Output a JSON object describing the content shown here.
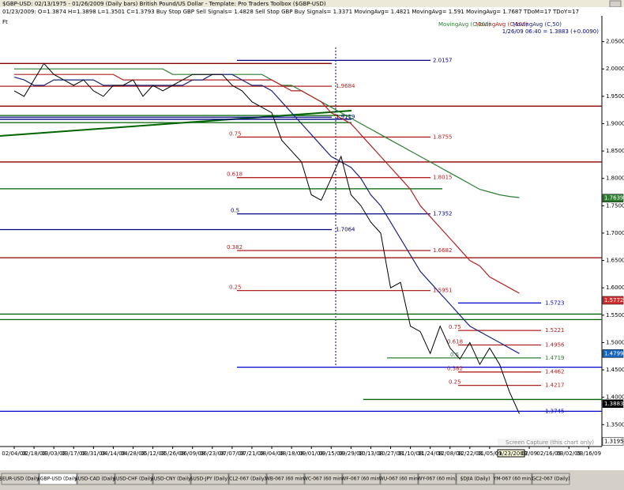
{
  "window": {
    "title": "$GBP-USD:  02/13/1975 - 01/26/2009  (Daily bars)   British Pound/US Dollar  -  Template: Pro Traders Toolbox ($GBP-USD)",
    "info": "01/23/2009:  O=1.3874  H=1.3898  L=1.3501  C=1.3793  Buy Stop GBP Sell Signals= 1.4828  Sell Stop GBP Buy Signals= 1.3371  MovingAvg= 1.4821  MovingAvg= 1.591  MovingAvg= 1.7687  TDoM=17  TDoY=17",
    "panel_label": "Ft",
    "capture_note": "Screen Capture (this chart only)",
    "cursor_date": "01/23/2009",
    "quote": "1/26/09 06:40 = 1.3883 (+0.0090)",
    "tabs": [
      "$EUR-USD (Daily)",
      "$GBP-USD (Daily)",
      "$USD-CAD (Daily)",
      "$USD-CHF (Daily)",
      "$USD-CNY (Daily)",
      "$USD-JPY (Daily)",
      "CL2-067 (Daily)",
      "WB-067 (60 min)",
      "WC-067 (60 min)",
      "WF-067 (60 min)",
      "WU-067 (60 min)",
      "WY-067 (60 min)",
      "$DJIA (Daily)",
      "YM-067 (60 min)",
      "GC2-067 (Daily)"
    ]
  },
  "chart_data": {
    "type": "line",
    "categories": [
      "02/04/08",
      null,
      "02/18/08",
      null,
      "03/03/08",
      null,
      "03/17/08",
      null,
      "03/31/08",
      null,
      "04/14/08",
      null,
      "04/28/08",
      null,
      "05/12/08",
      null,
      "05/26/08",
      null,
      "06/09/08",
      null,
      "06/23/08",
      null,
      "07/07/08",
      null,
      "07/21/08",
      null,
      "08/04/08",
      null,
      "08/18/08",
      null,
      "09/01/08",
      null,
      "09/15/08",
      null,
      "09/29/08",
      null,
      "10/13/08",
      null,
      "10/27/08",
      null,
      "11/10/08",
      null,
      "11/24/08",
      null,
      "12/08/08",
      null,
      "12/22/08",
      null,
      "01/05/09",
      null,
      null,
      null,
      "02/09",
      null,
      "02/16/09",
      null,
      "03/02/09",
      null,
      "03/16/09"
    ],
    "price": {
      "color": "#000000",
      "values": [
        1.96,
        1.95,
        1.98,
        2.01,
        1.99,
        1.98,
        1.97,
        1.98,
        1.96,
        1.95,
        1.97,
        1.97,
        1.98,
        1.95,
        1.97,
        1.96,
        1.97,
        1.98,
        1.99,
        1.99,
        1.99,
        1.99,
        1.97,
        1.96,
        1.94,
        1.93,
        1.92,
        1.87,
        1.85,
        1.83,
        1.77,
        1.76,
        1.8,
        1.84,
        1.77,
        1.75,
        1.72,
        1.7,
        1.6,
        1.61,
        1.53,
        1.52,
        1.48,
        1.53,
        1.49,
        1.47,
        1.5,
        1.46,
        1.49,
        1.46,
        1.41,
        1.37,
        null,
        null,
        null,
        null,
        null,
        null,
        null
      ]
    },
    "series": [
      {
        "name": "MovingAvg (C,200)",
        "color": "#2e7d32",
        "values": [
          2.0,
          2.0,
          2.0,
          2.0,
          2.0,
          2.0,
          2.0,
          2.0,
          2.0,
          2.0,
          2.0,
          2.0,
          2.0,
          2.0,
          2.0,
          2.0,
          1.99,
          1.99,
          1.99,
          1.99,
          1.99,
          1.99,
          1.99,
          1.99,
          1.99,
          1.99,
          1.98,
          1.97,
          1.97,
          1.96,
          1.95,
          1.94,
          1.93,
          1.92,
          1.91,
          1.9,
          1.89,
          1.88,
          1.87,
          1.86,
          1.85,
          1.84,
          1.83,
          1.82,
          1.81,
          1.8,
          1.79,
          1.78,
          1.775,
          1.77,
          1.767,
          1.765,
          null,
          null,
          null,
          null,
          null,
          null,
          null
        ]
      },
      {
        "name": "MovingAvg (C,100)",
        "color": "#b22222",
        "values": [
          1.99,
          1.99,
          1.99,
          1.99,
          1.99,
          1.99,
          1.99,
          1.99,
          1.99,
          1.99,
          1.99,
          1.98,
          1.98,
          1.98,
          1.98,
          1.98,
          1.98,
          1.98,
          1.98,
          1.98,
          1.98,
          1.98,
          1.98,
          1.98,
          1.98,
          1.98,
          1.98,
          1.97,
          1.96,
          1.96,
          1.95,
          1.94,
          1.92,
          1.91,
          1.9,
          1.88,
          1.86,
          1.84,
          1.82,
          1.8,
          1.78,
          1.75,
          1.73,
          1.71,
          1.69,
          1.67,
          1.65,
          1.64,
          1.62,
          1.61,
          1.6,
          1.59,
          null,
          null,
          null,
          null,
          null,
          null,
          null
        ]
      },
      {
        "name": "MovingAvg (C,50)",
        "color": "#1a237e",
        "values": [
          1.985,
          1.98,
          1.97,
          1.97,
          1.98,
          1.98,
          1.98,
          1.98,
          1.98,
          1.97,
          1.97,
          1.97,
          1.97,
          1.97,
          1.97,
          1.97,
          1.97,
          1.97,
          1.98,
          1.98,
          1.99,
          1.99,
          1.99,
          1.98,
          1.97,
          1.97,
          1.96,
          1.94,
          1.92,
          1.9,
          1.88,
          1.86,
          1.84,
          1.83,
          1.82,
          1.8,
          1.77,
          1.75,
          1.72,
          1.69,
          1.66,
          1.63,
          1.61,
          1.59,
          1.57,
          1.55,
          1.53,
          1.52,
          1.51,
          1.5,
          1.49,
          1.48,
          null,
          null,
          null,
          null,
          null,
          null,
          null
        ]
      }
    ],
    "levels": [
      {
        "value": 2.0157,
        "color": "#000080"
      },
      {
        "value": 1.9684,
        "color": "#b22222"
      },
      {
        "value": 1.9119,
        "color": "#000080"
      },
      {
        "value": 1.8755,
        "color": "#b22222",
        "ratio": 0.75
      },
      {
        "value": 1.8015,
        "color": "#b22222",
        "ratio": 0.618
      },
      {
        "value": 1.7352,
        "color": "#000080",
        "ratio": 0.5
      },
      {
        "value": 1.7064,
        "color": "#000080"
      },
      {
        "value": 1.6682,
        "color": "#b22222",
        "ratio": 0.382
      },
      {
        "value": 1.5951,
        "color": "#b22222",
        "ratio": 0.25
      },
      {
        "value": 1.5723,
        "color": "#0000cd"
      },
      {
        "value": 1.5221,
        "color": "#b22222",
        "ratio": 0.75
      },
      {
        "value": 1.4956,
        "color": "#b22222",
        "ratio": 0.618
      },
      {
        "value": 1.4719,
        "color": "#2e7d32",
        "ratio": 0.5
      },
      {
        "value": 1.4462,
        "color": "#b22222",
        "ratio": 0.382
      },
      {
        "value": 1.4217,
        "color": "#b22222",
        "ratio": 0.25
      },
      {
        "value": 1.3745,
        "color": "#0000cd"
      }
    ],
    "lines": [
      {
        "value": 2.01,
        "color": "#8b0000"
      },
      {
        "value": 1.932,
        "color": "#8b0000"
      },
      {
        "value": 1.83,
        "color": "#8b0000"
      },
      {
        "value": 1.655,
        "color": "#8b0000"
      },
      {
        "value": 1.915,
        "color": "#006400"
      },
      {
        "value": 1.908,
        "color": "#000080"
      },
      {
        "value": 1.902,
        "color": "#006400"
      },
      {
        "value": 1.781,
        "color": "#006400"
      },
      {
        "value": 1.552,
        "color": "#006400"
      },
      {
        "value": 1.542,
        "color": "#006400"
      },
      {
        "value": 1.455,
        "color": "#0000cd"
      },
      {
        "value": 1.396,
        "color": "#006400"
      }
    ],
    "axis_markers": [
      {
        "value": 1.7639,
        "color": "#2e7d32"
      },
      {
        "value": 1.5772,
        "color": "#d32f2f"
      },
      {
        "value": 1.4799,
        "color": "#1565c0"
      },
      {
        "value": 1.3883,
        "color": "#000000"
      },
      {
        "value": 1.3195,
        "color": "#ffffff"
      }
    ],
    "ylim": [
      1.31,
      2.1
    ],
    "yticks": [
      {
        "value": 1.35,
        "label": "1.3500"
      },
      {
        "value": 1.4,
        "label": "1.4000"
      },
      {
        "value": 1.45,
        "label": "1.4500"
      },
      {
        "value": 1.5,
        "label": "1.5000"
      },
      {
        "value": 1.55,
        "label": "1.5500"
      },
      {
        "value": 1.6,
        "label": "1.6000"
      },
      {
        "value": 1.65,
        "label": "1.6500"
      },
      {
        "value": 1.7,
        "label": "1.7000"
      },
      {
        "value": 1.75,
        "label": "1.7500"
      },
      {
        "value": 1.8,
        "label": "1.8000"
      },
      {
        "value": 1.85,
        "label": "1.8500"
      },
      {
        "value": 1.9,
        "label": "1.9000"
      },
      {
        "value": 1.95,
        "label": "1.9500"
      },
      {
        "value": 2.0,
        "label": "2.0000"
      },
      {
        "value": 2.05,
        "label": "2.0500"
      }
    ]
  }
}
